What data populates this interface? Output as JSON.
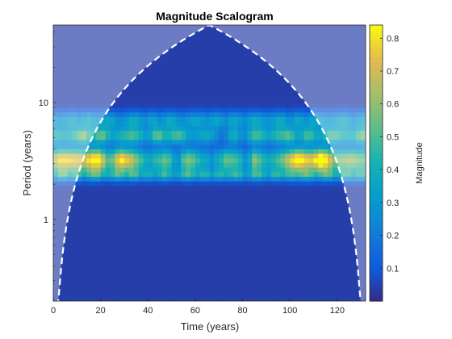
{
  "chart_data": {
    "type": "heatmap",
    "title": "Magnitude Scalogram",
    "xlabel": "Time (years)",
    "ylabel": "Period (years)",
    "xlim": [
      0,
      132
    ],
    "ylim": [
      0.2,
      46
    ],
    "yscale": "log",
    "x_ticks": [
      "0",
      "20",
      "40",
      "60",
      "80",
      "100",
      "120"
    ],
    "y_ticks": [
      "1",
      "10"
    ],
    "colorbar": {
      "label": "Magnitude",
      "range": [
        0.0,
        0.84
      ],
      "ticks": [
        "0.1",
        "0.2",
        "0.3",
        "0.4",
        "0.5",
        "0.6",
        "0.7",
        "0.8"
      ],
      "colormap": "parula"
    },
    "cone_of_influence": {
      "style": "white dashed",
      "shading_color": "#ffffff",
      "peak_x": 66,
      "peak_y": 46
    },
    "bands": [
      {
        "period": 3.2,
        "band": 0.1,
        "base": 0.45,
        "amp": 0.32,
        "modulation": "strong-at-edges"
      },
      {
        "period": 5.2,
        "band": 0.07,
        "base": 0.32,
        "amp": 0.22,
        "modulation": "mid"
      },
      {
        "period": 7.0,
        "band": 0.07,
        "base": 0.22,
        "amp": 0.14,
        "modulation": "uniform"
      },
      {
        "period": 2.4,
        "band": 0.05,
        "base": 0.2,
        "amp": 0.18,
        "modulation": "uniform"
      }
    ]
  },
  "colors": {
    "background_low": "#352a87",
    "cone_line": "#ffffff"
  }
}
